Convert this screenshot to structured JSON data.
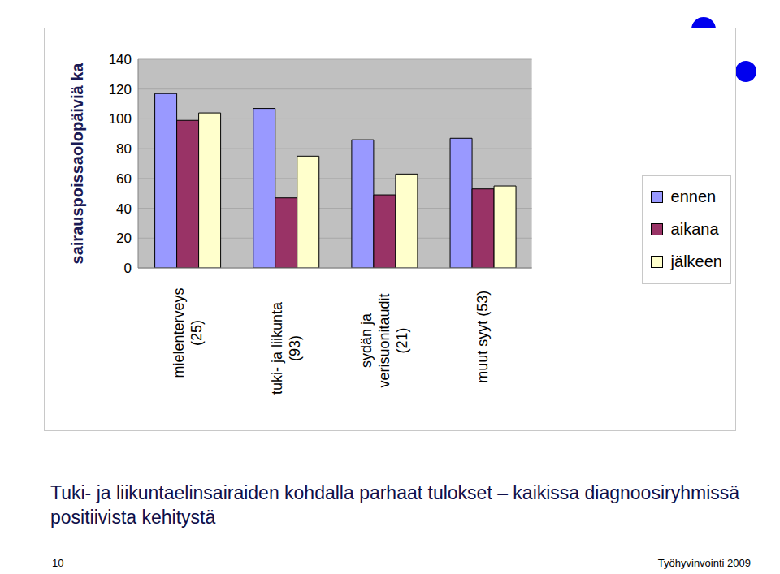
{
  "chart_data": {
    "type": "bar",
    "y_label": "sairauspoissaolopäiviä ka",
    "categories": [
      "mielenterveys (25)",
      "tuki- ja liikunta (93)",
      "sydän ja verisuonitaudit (21)",
      "muut syyt (53)"
    ],
    "series": [
      {
        "name": "ennen",
        "color": "#9999ff",
        "values": [
          117,
          107,
          86,
          87
        ]
      },
      {
        "name": "aikana",
        "color": "#993366",
        "values": [
          99,
          47,
          49,
          53
        ]
      },
      {
        "name": "jälkeen",
        "color": "#ffffcc",
        "values": [
          104,
          75,
          63,
          55
        ]
      }
    ],
    "ylim": [
      0,
      140
    ],
    "yticks": [
      0,
      20,
      40,
      60,
      80,
      100,
      120,
      140
    ],
    "grid": true,
    "legend": "right",
    "annotation": "Tuki- ja liikuntaelinsairaiden kohdalla parhaat tulokset – kaikissa diagnoosiryhmissä positiivista kehitystä"
  },
  "slide": {
    "page_number": "10",
    "footer": "Työhyvinvointi 2009"
  }
}
